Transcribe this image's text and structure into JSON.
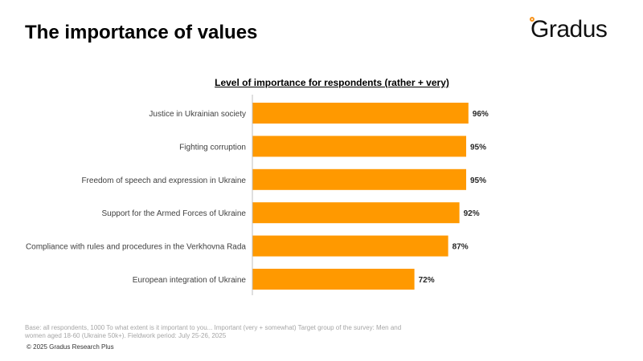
{
  "header": {
    "title": "The importance of values",
    "logo_text": "Gradus"
  },
  "chart_data": {
    "type": "bar",
    "orientation": "horizontal",
    "title": "Level of importance for respondents (rather + very)",
    "categories": [
      "Justice in Ukrainian society",
      "Fighting corruption",
      "Freedom of speech and expression in Ukraine",
      "Support for the Armed Forces of Ukraine",
      "Compliance with rules and procedures in the Verkhovna Rada",
      "European integration of Ukraine"
    ],
    "values": [
      96,
      95,
      95,
      92,
      87,
      72
    ],
    "labels": [
      "96%",
      "95%",
      "95%",
      "92%",
      "87%",
      "72%"
    ],
    "xlim": [
      0,
      100
    ],
    "color": "#ff9900",
    "grid": false
  },
  "footer": {
    "base": "Base: all respondents, 1000 To what extent is it important to you...  Important (very + somewhat) Target group of the survey: Men and women aged 18-60 (Ukraine 50k+). Fieldwork period: July 25-26, 2025",
    "copyright": "© 2025 Gradus Research Plus"
  }
}
